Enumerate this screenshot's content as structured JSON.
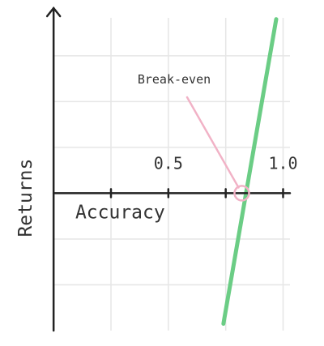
{
  "chart_data": {
    "type": "line",
    "xlabel": "Accuracy",
    "ylabel": "Returns",
    "xlim": [
      -0.05,
      1.03
    ],
    "ylim": [
      -3.0,
      3.9
    ],
    "grid": true,
    "x_grid": [
      0.25,
      0.5,
      0.75,
      1.0
    ],
    "y_grid": [
      -2,
      -1,
      1,
      2,
      3
    ],
    "x_ticks": [
      {
        "value": 0.25,
        "label": ""
      },
      {
        "value": 0.5,
        "label": "0.5"
      },
      {
        "value": 0.75,
        "label": ""
      },
      {
        "value": 1.0,
        "label": "1.0"
      }
    ],
    "series": [
      {
        "x": [
          0.74,
          0.97
        ],
        "y": [
          -2.85,
          3.8
        ],
        "color": "#6bcd85"
      }
    ],
    "annotations": [
      {
        "text": "Break-even",
        "point": [
          0.82,
          0.0
        ],
        "color": "#f1b2c6"
      }
    ]
  }
}
